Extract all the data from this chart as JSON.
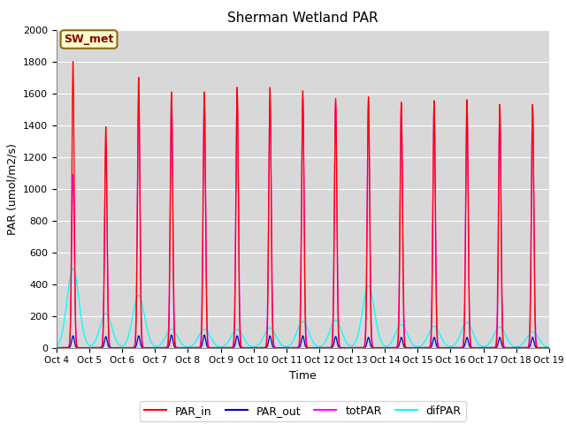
{
  "title": "Sherman Wetland PAR",
  "xlabel": "Time",
  "ylabel": "PAR (umol/m2/s)",
  "ylim": [
    0,
    2000
  ],
  "yticks": [
    0,
    200,
    400,
    600,
    800,
    1000,
    1200,
    1400,
    1600,
    1800,
    2000
  ],
  "background_color": "#d8d8d8",
  "fig_bg": "#ffffff",
  "annotation_text": "SW_met",
  "annotation_bg": "#ffffcc",
  "annotation_edge": "#8b6914",
  "start_day": 4,
  "total_days": 15,
  "par_in_peaks": [
    1800,
    1390,
    1700,
    1610,
    1610,
    1640,
    1640,
    1620,
    1570,
    1580,
    1545,
    1555,
    1560,
    1530,
    1530
  ],
  "totpar_peaks": [
    1090,
    1270,
    1600,
    1595,
    1595,
    1610,
    1570,
    1570,
    1540,
    1555,
    1530,
    1520,
    1540,
    1500,
    1510
  ],
  "difpar_peaks": [
    500,
    215,
    330,
    115,
    115,
    115,
    125,
    165,
    175,
    390,
    145,
    135,
    160,
    130,
    100
  ],
  "difpar_sigma": 0.18,
  "parout_peaks": [
    75,
    70,
    75,
    80,
    80,
    75,
    75,
    75,
    70,
    65,
    65,
    65,
    65,
    65,
    65
  ],
  "par_in_sigma": 0.035,
  "totpar_sigma": 0.04,
  "parout_sigma": 0.04
}
